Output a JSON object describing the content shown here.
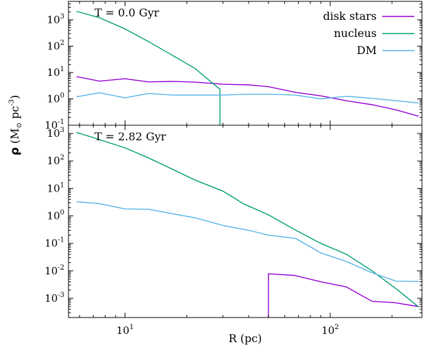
{
  "chart_data": {
    "type": "line",
    "shared_xlabel": "R (pc)",
    "shared_ylabel_symbol": "ρ",
    "shared_ylabel_unit": "(M",
    "shared_ylabel_sun": "⊙",
    "shared_ylabel_unit2": " pc",
    "shared_ylabel_exp": "-3",
    "shared_ylabel_close": ")",
    "xscale": "log",
    "yscale": "log",
    "xlim": [
      5.3,
      280
    ],
    "x_ticks": [
      {
        "base": "10",
        "exp": "1",
        "value": 10
      },
      {
        "base": "10",
        "exp": "2",
        "value": 100
      }
    ],
    "panels": [
      {
        "title": "T = 0.0 Gyr",
        "ylim": [
          0.1,
          5000
        ],
        "y_ticks": [
          {
            "base": "10",
            "exp": "-1",
            "value": 0.1
          },
          {
            "base": "10",
            "exp": "0",
            "value": 1
          },
          {
            "base": "10",
            "exp": "1",
            "value": 10
          },
          {
            "base": "10",
            "exp": "2",
            "value": 100
          },
          {
            "base": "10",
            "exp": "3",
            "value": 1000
          }
        ],
        "legend": {
          "position": "top-right",
          "entries": [
            "disk stars",
            "nucleus",
            "DM"
          ]
        },
        "series": [
          {
            "name": "disk stars",
            "color": "#9400d3",
            "x": [
              5.8,
              7.5,
              10,
              13,
              17,
              22,
              30,
              40,
              50,
              68,
              90,
              120,
              160,
              210,
              270
            ],
            "y": [
              7.0,
              4.7,
              5.8,
              4.4,
              4.6,
              4.3,
              3.6,
              3.4,
              2.9,
              1.75,
              1.3,
              0.85,
              0.6,
              0.38,
              0.22
            ]
          },
          {
            "name": "nucleus",
            "color": "#009e73",
            "x": [
              5.8,
              7.5,
              10,
              13,
              17,
              22,
              29,
              29
            ],
            "y": [
              2100,
              1200,
              450,
              150,
              45,
              14,
              2.3,
              0.1
            ]
          },
          {
            "name": "DM",
            "color": "#56b4e9",
            "x": [
              5.8,
              7.5,
              10,
              13,
              17,
              22,
              30,
              40,
              50,
              68,
              90,
              120,
              160,
              210,
              270
            ],
            "y": [
              1.2,
              1.7,
              1.1,
              1.6,
              1.4,
              1.4,
              1.4,
              1.5,
              1.5,
              1.4,
              1.0,
              1.25,
              1.05,
              0.85,
              0.7
            ]
          }
        ]
      },
      {
        "title": "T = 2.82 Gyr",
        "ylim": [
          0.0002,
          2000
        ],
        "y_ticks": [
          {
            "base": "10",
            "exp": "-3",
            "value": 0.001
          },
          {
            "base": "10",
            "exp": "-2",
            "value": 0.01
          },
          {
            "base": "10",
            "exp": "-1",
            "value": 0.1
          },
          {
            "base": "10",
            "exp": "0",
            "value": 1
          },
          {
            "base": "10",
            "exp": "1",
            "value": 10
          },
          {
            "base": "10",
            "exp": "2",
            "value": 100
          },
          {
            "base": "10",
            "exp": "3",
            "value": 1000
          }
        ],
        "series": [
          {
            "name": "disk stars",
            "color": "#9400d3",
            "x": [
              50,
              50,
              67,
              90,
              120,
              160,
              205,
              270
            ],
            "y": [
              0.0002,
              0.0078,
              0.0068,
              0.004,
              0.0026,
              0.00078,
              0.0007,
              0.0005
            ]
          },
          {
            "name": "nucleus",
            "color": "#009e73",
            "x": [
              5.8,
              7.5,
              10,
              13,
              17,
              22,
              30,
              38,
              50,
              68,
              90,
              120,
              160,
              210,
              270
            ],
            "y": [
              1100,
              600,
              300,
              130,
              50,
              20,
              8.0,
              2.7,
              1.1,
              0.3,
              0.1,
              0.04,
              0.01,
              0.0022,
              0.00048
            ]
          },
          {
            "name": "DM",
            "color": "#56b4e9",
            "x": [
              5.8,
              7.5,
              10,
              13,
              17,
              22,
              30,
              40,
              50,
              68,
              90,
              120,
              160,
              210,
              270
            ],
            "y": [
              3.3,
              2.8,
              1.8,
              1.75,
              1.2,
              0.85,
              0.45,
              0.3,
              0.2,
              0.15,
              0.045,
              0.022,
              0.0085,
              0.0042,
              0.0041
            ]
          }
        ]
      }
    ]
  }
}
